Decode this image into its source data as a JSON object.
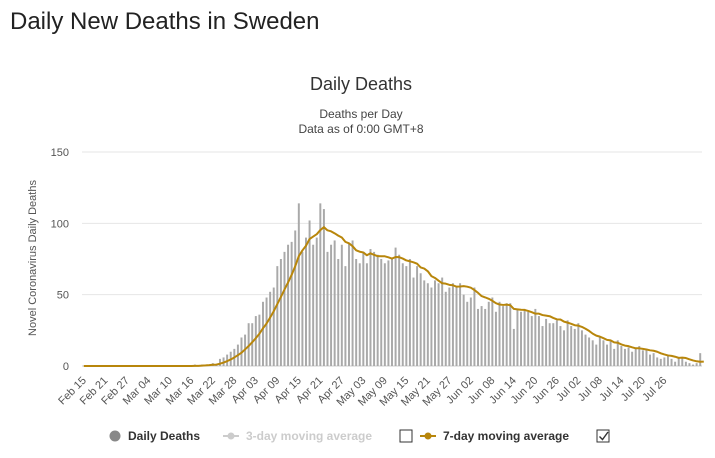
{
  "page": {
    "heading": "Daily New Deaths in Sweden"
  },
  "chart_data": {
    "type": "bar",
    "title": "Daily Deaths",
    "subtitle_lines": [
      "Deaths per Day",
      "Data as of 0:00 GMT+8"
    ],
    "ylabel": "Novel Coronavirus Daily Deaths",
    "xlabel": "",
    "ylim": [
      0,
      150
    ],
    "yticks": [
      0,
      50,
      100,
      150
    ],
    "grid": true,
    "legend_position": "bottom",
    "start_date": "Feb 15",
    "x_tick_labels": [
      "Feb 15",
      "Feb 21",
      "Feb 27",
      "Mar 04",
      "Mar 10",
      "Mar 16",
      "Mar 22",
      "Mar 28",
      "Apr 03",
      "Apr 09",
      "Apr 15",
      "Apr 21",
      "Apr 27",
      "May 03",
      "May 09",
      "May 15",
      "May 21",
      "May 27",
      "Jun 02",
      "Jun 08",
      "Jun 14",
      "Jun 20",
      "Jun 26",
      "Jul 02",
      "Jul 08",
      "Jul 14",
      "Jul 20",
      "Jul 26"
    ],
    "series": [
      {
        "name": "Daily Deaths",
        "kind": "bar",
        "color": "#a9a9a9",
        "values": [
          0,
          0,
          0,
          0,
          0,
          0,
          0,
          0,
          0,
          0,
          0,
          0,
          0,
          0,
          0,
          0,
          0,
          0,
          0,
          0,
          0,
          0,
          0,
          0,
          0,
          0,
          0,
          0,
          0,
          0,
          0,
          1,
          0,
          1,
          1,
          1,
          2,
          1,
          5,
          6,
          8,
          10,
          12,
          15,
          20,
          22,
          30,
          30,
          35,
          36,
          45,
          48,
          52,
          55,
          70,
          75,
          80,
          85,
          87,
          95,
          114,
          80,
          90,
          102,
          85,
          90,
          114,
          110,
          80,
          85,
          88,
          75,
          85,
          70,
          86,
          88,
          75,
          72,
          80,
          72,
          82,
          80,
          78,
          75,
          72,
          74,
          76,
          83,
          78,
          72,
          70,
          75,
          62,
          70,
          65,
          60,
          58,
          55,
          60,
          58,
          62,
          52,
          55,
          58,
          56,
          58,
          50,
          45,
          48,
          55,
          40,
          42,
          40,
          45,
          48,
          38,
          45,
          42,
          44,
          44,
          26,
          40,
          38,
          40,
          38,
          35,
          40,
          35,
          28,
          33,
          30,
          30,
          32,
          28,
          25,
          32,
          28,
          26,
          30,
          25,
          22,
          20,
          18,
          15,
          20,
          18,
          15,
          18,
          12,
          18,
          14,
          12,
          13,
          10,
          12,
          14,
          11,
          12,
          8,
          9,
          6,
          5,
          6,
          8,
          5,
          3,
          6,
          6,
          3,
          2,
          1,
          2,
          9
        ]
      },
      {
        "name": "3-day moving average",
        "kind": "line",
        "visible": false,
        "color": "#cccccc",
        "values": []
      },
      {
        "name": "7-day moving average",
        "kind": "line",
        "visible": true,
        "color": "#b8860b",
        "values": [
          0,
          0,
          0,
          0,
          0,
          0,
          0,
          0,
          0,
          0,
          0,
          0,
          0,
          0,
          0,
          0,
          0,
          0,
          0,
          0,
          0,
          0,
          0,
          0,
          0,
          0,
          0,
          0,
          0,
          0,
          0,
          0.1,
          0.1,
          0.3,
          0.4,
          0.6,
          0.9,
          1.0,
          1.6,
          2.4,
          3.4,
          4.6,
          6.0,
          7.6,
          9.3,
          11.6,
          14.0,
          16.7,
          19.5,
          22.6,
          26.4,
          29.8,
          34.0,
          38.4,
          43.4,
          48.4,
          53.6,
          58.6,
          63.9,
          70.0,
          77.0,
          81.0,
          84.3,
          89.0,
          90.7,
          92.4,
          95.3,
          97.3,
          95.1,
          94.4,
          93.0,
          91.4,
          90.1,
          87.0,
          86.0,
          84.0,
          81.1,
          80.1,
          79.6,
          77.6,
          79.0,
          77.9,
          77.0,
          76.9,
          76.9,
          76.2,
          75.3,
          76.4,
          76.3,
          75.3,
          74.0,
          73.4,
          72.7,
          71.7,
          69.1,
          68.3,
          66.4,
          63.0,
          61.7,
          59.8,
          58.0,
          57.7,
          56.9,
          56.6,
          55.6,
          55.7,
          56.0,
          55.6,
          54.9,
          53.2,
          51.3,
          49.0,
          48.1,
          47.1,
          45.7,
          44.0,
          43.1,
          42.8,
          43.0,
          42.6,
          40.0,
          39.7,
          39.4,
          39.3,
          38.6,
          37.7,
          36.7,
          36.7,
          35.7,
          35.3,
          34.9,
          33.7,
          32.7,
          32.6,
          31.1,
          30.4,
          29.6,
          28.6,
          28.3,
          27.4,
          26.1,
          24.6,
          22.7,
          21.3,
          20.6,
          19.5,
          18.3,
          18.0,
          16.6,
          16.3,
          15.1,
          14.3,
          13.9,
          13.1,
          12.4,
          12.4,
          12.0,
          11.6,
          11.0,
          10.7,
          10.0,
          8.9,
          8.1,
          7.4,
          7.1,
          6.5,
          5.7,
          5.9,
          5.6,
          4.7,
          3.9,
          3.3,
          3.0,
          3.1
        ]
      }
    ]
  },
  "legend": {
    "items": [
      {
        "label": "Daily Deaths",
        "marker": "circle",
        "color": "#888888"
      },
      {
        "label": "3-day moving average",
        "marker": "circle-line",
        "color": "#cccccc",
        "disabled": true
      },
      {
        "label": "7-day moving average",
        "marker": "circle-line",
        "color": "#b8860b"
      }
    ],
    "checkbox_3day": "unchecked",
    "checkbox_7day": "checked"
  }
}
